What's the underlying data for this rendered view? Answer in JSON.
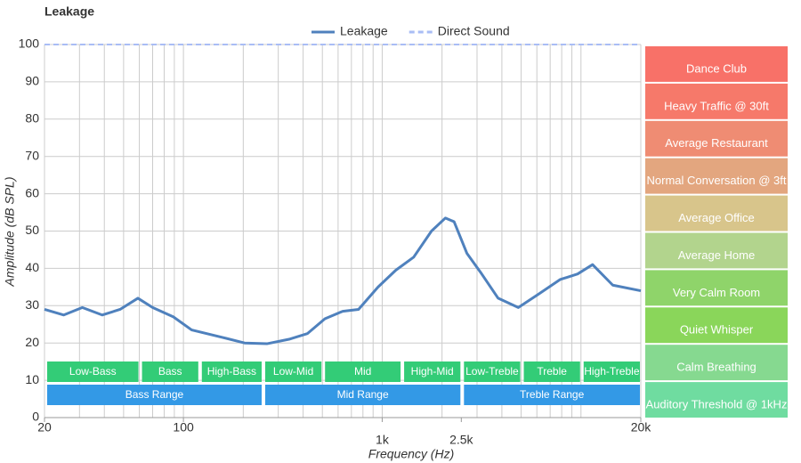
{
  "chart_data": {
    "type": "line",
    "title": "Leakage",
    "x_label": "Frequency (Hz)",
    "y_label": "Amplitude (dB SPL)",
    "xscale": "log",
    "xlim": [
      20,
      20000
    ],
    "ylim": [
      0,
      100
    ],
    "xticks": [
      20,
      100,
      {
        "value": 1000,
        "label": "1k"
      },
      {
        "value": 2500,
        "label": "2.5k"
      },
      {
        "value": 20000,
        "label": "20k"
      }
    ],
    "xgrid": [
      20,
      30,
      40,
      50,
      60,
      70,
      80,
      90,
      100,
      200,
      300,
      400,
      500,
      600,
      700,
      800,
      900,
      1000,
      2000,
      3000,
      4000,
      5000,
      6000,
      7000,
      8000,
      9000,
      10000,
      20000
    ],
    "yticks": [
      0,
      10,
      20,
      30,
      40,
      50,
      60,
      70,
      80,
      90,
      100
    ],
    "grid": true,
    "series": [
      {
        "name": "Leakage",
        "color": "#4f81bd",
        "style": "solid",
        "x": [
          20,
          25,
          31,
          39,
          48,
          59,
          70,
          89,
          110,
          157,
          203,
          263,
          340,
          420,
          515,
          633,
          760,
          953,
          1170,
          1440,
          1770,
          2080,
          2300,
          2670,
          3120,
          3830,
          4840,
          6080,
          7850,
          9620,
          11440,
          14450,
          20000
        ],
        "values": [
          29,
          27.5,
          29.5,
          27.5,
          29,
          32,
          29.5,
          27,
          23.5,
          21.5,
          20,
          19.8,
          21,
          22.5,
          26.5,
          28.5,
          29,
          35,
          39.5,
          43,
          50,
          53.5,
          52.5,
          44,
          39,
          32,
          29.5,
          33,
          37,
          38.5,
          41,
          35.5,
          34
        ]
      },
      {
        "name": "Direct Sound",
        "color": "#a9bdf5",
        "style": "dashed",
        "x": [
          20,
          20000
        ],
        "values": [
          100,
          100
        ]
      }
    ],
    "bands": [
      {
        "label": "Low-Bass",
        "range": [
          20,
          60
        ]
      },
      {
        "label": "Bass",
        "range": [
          60,
          120
        ]
      },
      {
        "label": "High-Bass",
        "range": [
          120,
          250
        ]
      },
      {
        "label": "Low-Mid",
        "range": [
          250,
          500
        ]
      },
      {
        "label": "Mid",
        "range": [
          500,
          1250
        ]
      },
      {
        "label": "High-Mid",
        "range": [
          1250,
          2500
        ]
      },
      {
        "label": "Low-Treble",
        "range": [
          2500,
          5000
        ]
      },
      {
        "label": "Treble",
        "range": [
          5000,
          10000
        ]
      },
      {
        "label": "High-Treble",
        "range": [
          10000,
          20000
        ]
      }
    ],
    "ranges": [
      {
        "label": "Bass Range",
        "range": [
          20,
          250
        ]
      },
      {
        "label": "Mid Range",
        "range": [
          250,
          2500
        ]
      },
      {
        "label": "Treble Range",
        "range": [
          2500,
          20000
        ]
      }
    ],
    "levels": [
      {
        "label": "Dance Club",
        "color": "#f87168",
        "range": [
          90,
          100
        ]
      },
      {
        "label": "Heavy Traffic @ 30ft",
        "color": "#f6796a",
        "range": [
          80,
          90
        ]
      },
      {
        "label": "Average Restaurant",
        "color": "#ef8c73",
        "range": [
          70,
          80
        ]
      },
      {
        "label": "Normal Conversation @ 3ft",
        "color": "#e3a67f",
        "range": [
          60,
          70
        ]
      },
      {
        "label": "Average Office",
        "color": "#d8c58b",
        "range": [
          50,
          60
        ]
      },
      {
        "label": "Average Home",
        "color": "#b2d48d",
        "range": [
          40,
          50
        ]
      },
      {
        "label": "Very Calm Room",
        "color": "#8fd46a",
        "range": [
          30,
          40
        ]
      },
      {
        "label": "Quiet Whisper",
        "color": "#8ad65a",
        "range": [
          20,
          30
        ]
      },
      {
        "label": "Calm Breathing",
        "color": "#86d990",
        "range": [
          10,
          20
        ]
      },
      {
        "label": "Auditory Threshold @ 1kHz",
        "color": "#6fdca0",
        "range": [
          0,
          10
        ]
      }
    ]
  }
}
